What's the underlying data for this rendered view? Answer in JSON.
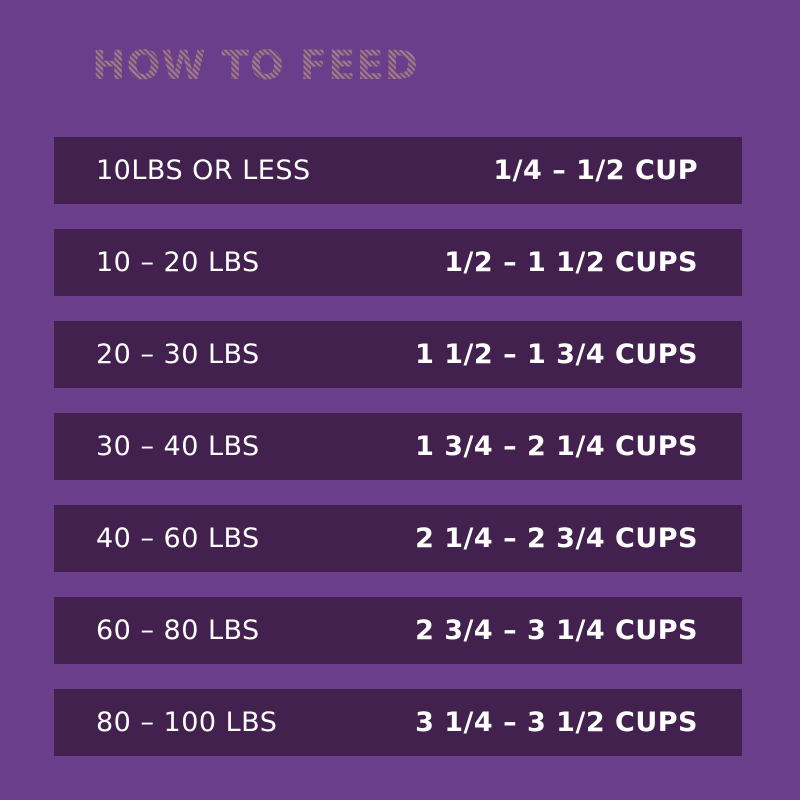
{
  "title": "HOW TO FEED",
  "colors": {
    "background": "#6b3e8c",
    "row_background": "#43214f",
    "title_gold": "#d9ad5c",
    "text": "#ffffff"
  },
  "rows": [
    {
      "weight": "10LBS OR LESS",
      "amount": "1/4 – 1/2 CUP"
    },
    {
      "weight": "10 – 20 LBS",
      "amount": "1/2 – 1 1/2 CUPS"
    },
    {
      "weight": "20 – 30 LBS",
      "amount": "1 1/2 – 1 3/4 CUPS"
    },
    {
      "weight": "30 – 40 LBS",
      "amount": "1 3/4 – 2 1/4 CUPS"
    },
    {
      "weight": "40 – 60 LBS",
      "amount": "2 1/4 – 2 3/4 CUPS"
    },
    {
      "weight": "60 – 80 LBS",
      "amount": "2 3/4 – 3 1/4 CUPS"
    },
    {
      "weight": "80 – 100 LBS",
      "amount": "3 1/4 – 3 1/2 CUPS"
    }
  ]
}
